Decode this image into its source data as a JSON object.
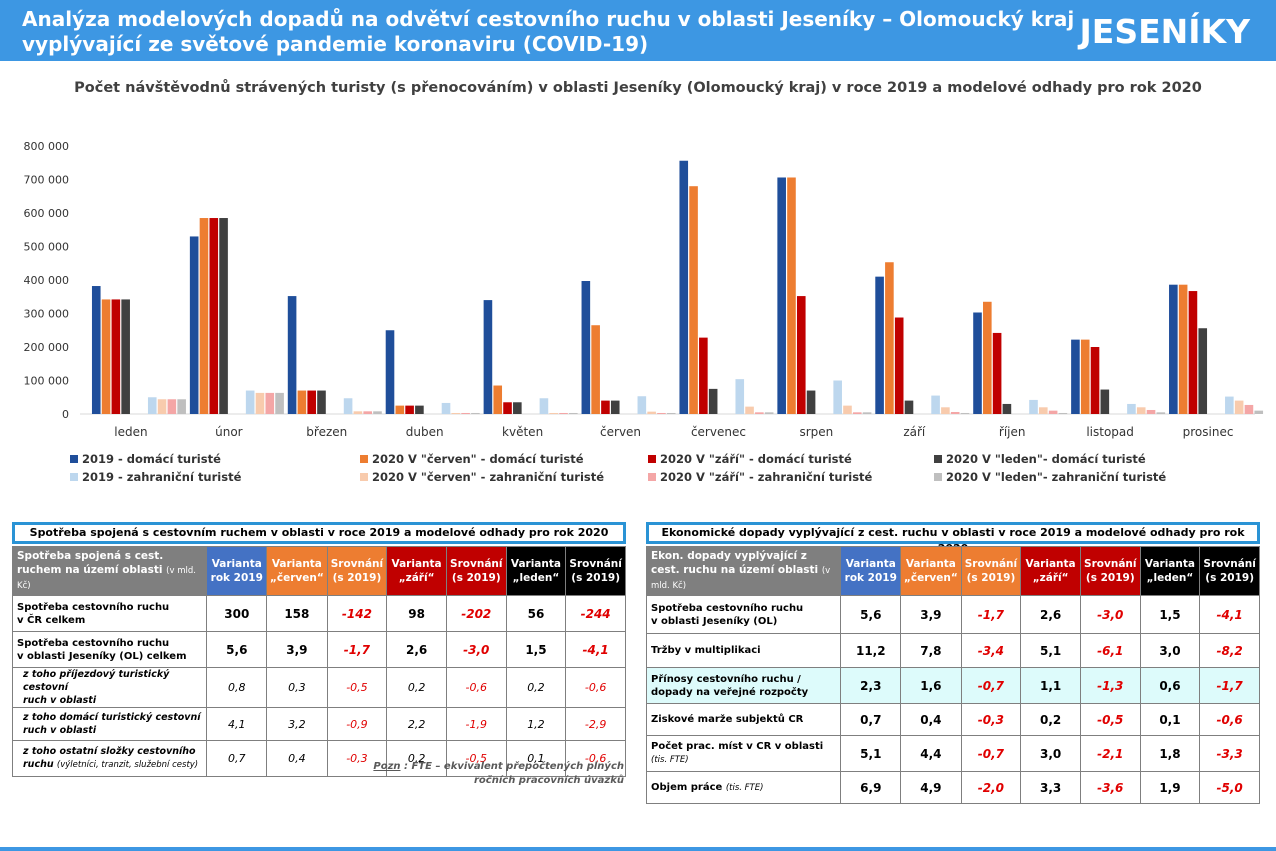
{
  "header": {
    "title_line1": "Analýza modelových dopadů na odvětví cestovního ruchu v oblasti Jeseníky – Olomoucký kraj",
    "title_line2": "vyplývající ze světové pandemie koronaviru (COVID-19)",
    "logo": "JESENÍKY"
  },
  "chart_data": {
    "type": "bar",
    "title": "Počet návštěvodnů strávených turisty (s přenocováním) v oblasti Jeseníky (Olomoucký kraj) v roce 2019 a modelové odhady pro rok 2020",
    "categories": [
      "leden",
      "únor",
      "březen",
      "duben",
      "květen",
      "červen",
      "červenec",
      "srpen",
      "září",
      "říjen",
      "listopad",
      "prosinec"
    ],
    "ylim": [
      0,
      800000
    ],
    "yticks": [
      "0",
      "100 000",
      "200 000",
      "300 000",
      "400 000",
      "500 000",
      "600 000",
      "700 000",
      "800 000"
    ],
    "series": [
      {
        "name": "2019 - domácí turisté",
        "color": "#1f4e9a",
        "values": [
          382000,
          530000,
          352000,
          250000,
          340000,
          397000,
          756000,
          706000,
          410000,
          303000,
          222000,
          386000
        ]
      },
      {
        "name": "2020 V \"červen\" - domácí turisté",
        "color": "#ed7d31",
        "values": [
          342000,
          585000,
          70000,
          25000,
          85000,
          265000,
          680000,
          706000,
          453000,
          335000,
          222000,
          386000
        ]
      },
      {
        "name": "2020 V \"září\" - domácí turisté",
        "color": "#c00000",
        "values": [
          342000,
          585000,
          70000,
          25000,
          35000,
          40000,
          228000,
          352000,
          288000,
          242000,
          200000,
          367000
        ]
      },
      {
        "name": "2020 V \"leden\"- domácí turisté",
        "color": "#404040",
        "values": [
          342000,
          585000,
          70000,
          25000,
          35000,
          40000,
          75000,
          70000,
          40000,
          30000,
          73000,
          256000
        ]
      },
      {
        "name": "2019 - zahraniční turisté",
        "color": "#bdd7ee",
        "values": [
          50000,
          70000,
          47000,
          33000,
          47000,
          53000,
          104000,
          100000,
          55000,
          42000,
          30000,
          52000
        ]
      },
      {
        "name": "2020 V \"červen\" - zahraniční turisté",
        "color": "#f8cbad",
        "values": [
          44000,
          63000,
          8000,
          3000,
          3000,
          7000,
          22000,
          25000,
          20000,
          20000,
          20000,
          40000
        ]
      },
      {
        "name": "2020 V \"září\" - zahraniční turisté",
        "color": "#f4a6a6",
        "values": [
          44000,
          63000,
          8000,
          3000,
          3000,
          3000,
          5000,
          5000,
          6000,
          10000,
          12000,
          27000
        ]
      },
      {
        "name": "2020 V \"leden\"- zahraniční turisté",
        "color": "#bfbfbf",
        "values": [
          44000,
          63000,
          8000,
          3000,
          3000,
          3000,
          5000,
          5000,
          3000,
          3000,
          5000,
          10000
        ]
      }
    ]
  },
  "left_panel": {
    "title": "Spotřeba spojená s cestovním ruchem v oblasti v roce 2019 a modelové odhady pro rok 2020",
    "header_label": "Spotřeba spojená s cest. ruchem na území oblasti",
    "header_unit": "(v mld. Kč)",
    "columns": [
      {
        "l1": "Varianta",
        "l2": "rok 2019"
      },
      {
        "l1": "Varianta",
        "l2": "„červen“"
      },
      {
        "l1": "Srovnání",
        "l2": "(s 2019)"
      },
      {
        "l1": "Varianta",
        "l2": "„září“"
      },
      {
        "l1": "Srovnání",
        "l2": "(s 2019)"
      },
      {
        "l1": "Varianta",
        "l2": "„leden“"
      },
      {
        "l1": "Srovnání",
        "l2": "(s 2019)"
      }
    ],
    "rows": [
      {
        "l1": "Spotřeba cestovního ruchu",
        "l2": "v ČR celkem",
        "values": [
          "300",
          "158",
          "-142",
          "98",
          "-202",
          "56",
          "-244"
        ]
      },
      {
        "l1": "Spotřeba cestovního ruchu",
        "l2": "v oblasti Jeseníky (OL) celkem",
        "values": [
          "5,6",
          "3,9",
          "-1,7",
          "2,6",
          "-3,0",
          "1,5",
          "-4,1"
        ]
      },
      {
        "l1": "z toho příjezdový turistický cestovní",
        "l2": "ruch v oblasti",
        "values": [
          "0,8",
          "0,3",
          "-0,5",
          "0,2",
          "-0,6",
          "0,2",
          "-0,6"
        ]
      },
      {
        "l1": "z toho domácí turistický cestovní",
        "l2": "ruch v oblasti",
        "values": [
          "4,1",
          "3,2",
          "-0,9",
          "2,2",
          "-1,9",
          "1,2",
          "-2,9"
        ]
      },
      {
        "l1": "z toho ostatní složky cestovního",
        "l2": "ruchu",
        "l2_small": "(výletníci, tranzit, služební cesty)",
        "values": [
          "0,7",
          "0,4",
          "-0,3",
          "0,2",
          "-0,5",
          "0,1",
          "-0,6"
        ]
      }
    ],
    "note_label": "Pozn",
    "note_line1": ": FTE – ekvivalent přepočtených plných",
    "note_line2": "ročních pracovních úvazků"
  },
  "right_panel": {
    "title": "Ekonomické dopady vyplývající z cest. ruchu v oblasti v roce 2019 a modelové odhady pro rok 2020",
    "header_label": "Ekon. dopady vyplývající z cest. ruchu na území oblasti",
    "header_unit": "(v mld. Kč)",
    "columns": [
      {
        "l1": "Varianta",
        "l2": "rok 2019"
      },
      {
        "l1": "Varianta",
        "l2": "„červen“"
      },
      {
        "l1": "Srovnání",
        "l2": "(s 2019)"
      },
      {
        "l1": "Varianta",
        "l2": "„září“"
      },
      {
        "l1": "Srovnání",
        "l2": "(s 2019)"
      },
      {
        "l1": "Varianta",
        "l2": "„leden“"
      },
      {
        "l1": "Srovnání",
        "l2": "(s 2019)"
      }
    ],
    "rows": [
      {
        "l1": "Spotřeba cestovního ruchu",
        "l2": "v oblasti Jeseníky (OL)",
        "values": [
          "5,6",
          "3,9",
          "-1,7",
          "2,6",
          "-3,0",
          "1,5",
          "-4,1"
        ]
      },
      {
        "l1": "Tržby v multiplikaci",
        "l2": "",
        "values": [
          "11,2",
          "7,8",
          "-3,4",
          "5,1",
          "-6,1",
          "3,0",
          "-8,2"
        ]
      },
      {
        "l1": "Přínosy cestovního ruchu /",
        "l2": "dopady na veřejné rozpočty",
        "values": [
          "2,3",
          "1,6",
          "-0,7",
          "1,1",
          "-1,3",
          "0,6",
          "-1,7"
        ]
      },
      {
        "l1": "Ziskové marže subjektů CR",
        "l2": "",
        "values": [
          "0,7",
          "0,4",
          "-0,3",
          "0,2",
          "-0,5",
          "0,1",
          "-0,6"
        ]
      },
      {
        "l1": "Počet prac. míst v CR v oblasti",
        "l2": "",
        "l2_small": "(tis. FTE)",
        "values": [
          "5,1",
          "4,4",
          "-0,7",
          "3,0",
          "-2,1",
          "1,8",
          "-3,3"
        ]
      },
      {
        "l1": "Objem práce",
        "l1_small": "(tis. FTE)",
        "l2": "",
        "values": [
          "6,9",
          "4,9",
          "-2,0",
          "3,3",
          "-3,6",
          "1,9",
          "-5,0"
        ]
      }
    ]
  }
}
